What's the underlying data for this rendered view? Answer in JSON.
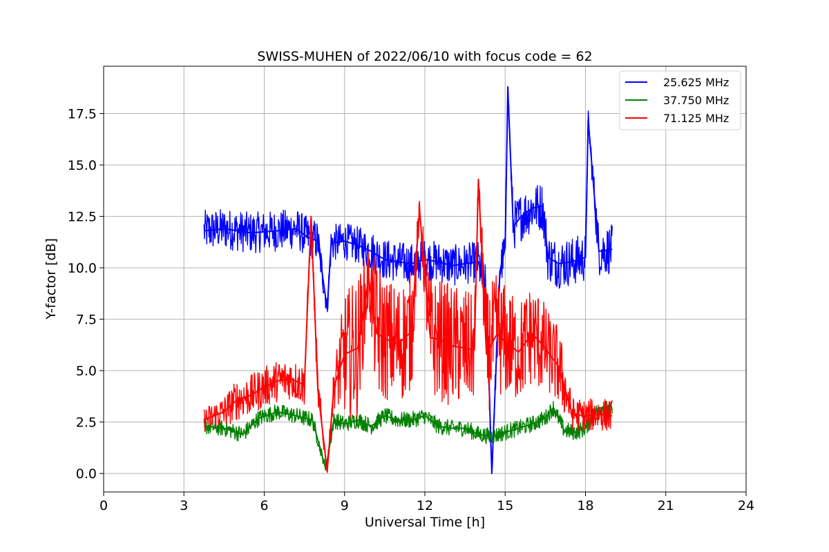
{
  "chart_data": {
    "type": "line",
    "title": "SWISS-MUHEN of 2022/06/10 with focus code = 62",
    "xlabel": "Universal Time [h]",
    "ylabel": "Y-factor [dB]",
    "xlim": [
      0,
      24
    ],
    "ylim": [
      -0.9,
      19.8
    ],
    "xticks": [
      0,
      3,
      6,
      9,
      12,
      15,
      18,
      21,
      24
    ],
    "xtick_labels": [
      "0",
      "3",
      "6",
      "9",
      "12",
      "15",
      "18",
      "21",
      "24"
    ],
    "yticks": [
      0.0,
      2.5,
      5.0,
      7.5,
      10.0,
      12.5,
      15.0,
      17.5
    ],
    "ytick_labels": [
      "0.0",
      "2.5",
      "5.0",
      "7.5",
      "10.0",
      "12.5",
      "15.0",
      "17.5"
    ],
    "grid": true,
    "legend_position": "top-right",
    "series": [
      {
        "name": "25.625 MHz",
        "color": "#0000ff",
        "x": [
          3.75,
          4.5,
          5.5,
          6.5,
          7.2,
          7.6,
          8.0,
          8.35,
          8.5,
          9.0,
          9.5,
          10.0,
          10.5,
          11.0,
          11.5,
          12.0,
          12.5,
          13.0,
          13.5,
          14.0,
          14.3,
          14.5,
          14.8,
          15.0,
          15.1,
          15.3,
          15.6,
          16.0,
          16.4,
          16.6,
          17.0,
          17.5,
          18.0,
          18.1,
          18.5,
          19.0
        ],
        "y": [
          11.8,
          11.9,
          11.7,
          11.8,
          11.9,
          11.5,
          11.3,
          8.0,
          11.2,
          11.3,
          11.1,
          10.8,
          10.4,
          10.3,
          10.2,
          10.4,
          10.3,
          10.1,
          10.2,
          10.3,
          8.5,
          0.0,
          9.8,
          11.0,
          18.8,
          12.0,
          12.5,
          12.9,
          13.0,
          10.5,
          10.2,
          10.3,
          10.5,
          17.2,
          10.8,
          10.9
        ],
        "band": [
          1.0,
          1.0,
          1.0,
          1.0,
          1.0,
          1.0,
          1.0,
          0.5,
          0.9,
          0.9,
          0.9,
          1.0,
          1.0,
          1.0,
          1.0,
          1.0,
          1.0,
          1.0,
          1.0,
          1.0,
          1.5,
          0.5,
          1.0,
          1.0,
          0.5,
          1.2,
          1.2,
          1.2,
          1.2,
          1.2,
          1.2,
          1.2,
          1.2,
          0.5,
          1.2,
          1.2
        ]
      },
      {
        "name": "37.750 MHz",
        "color": "#008000",
        "x": [
          3.75,
          4.5,
          5.2,
          5.8,
          6.5,
          7.2,
          7.8,
          8.3,
          8.6,
          9.0,
          9.5,
          10.0,
          10.5,
          11.0,
          11.5,
          12.0,
          12.5,
          13.0,
          13.5,
          14.0,
          14.5,
          15.0,
          15.5,
          16.0,
          16.5,
          16.8,
          17.2,
          17.6,
          18.0,
          18.5,
          19.0
        ],
        "y": [
          2.3,
          2.2,
          1.9,
          2.7,
          3.0,
          2.8,
          2.6,
          0.2,
          2.6,
          2.4,
          2.6,
          2.3,
          2.8,
          2.6,
          2.6,
          2.8,
          2.3,
          2.2,
          2.2,
          1.9,
          1.8,
          2.0,
          2.2,
          2.4,
          2.7,
          3.2,
          2.1,
          2.0,
          2.2,
          3.2,
          3.1
        ],
        "band": [
          0.4,
          0.4,
          0.4,
          0.4,
          0.4,
          0.4,
          0.4,
          0.2,
          0.4,
          0.4,
          0.4,
          0.4,
          0.4,
          0.4,
          0.4,
          0.4,
          0.4,
          0.4,
          0.4,
          0.4,
          0.4,
          0.4,
          0.4,
          0.4,
          0.4,
          0.4,
          0.4,
          0.4,
          0.4,
          0.4,
          0.4
        ]
      },
      {
        "name": "71.125 MHz",
        "color": "#ff0000",
        "x": [
          3.75,
          4.5,
          5.0,
          5.5,
          6.0,
          6.5,
          7.0,
          7.5,
          7.75,
          8.0,
          8.35,
          8.6,
          9.0,
          9.5,
          9.9,
          10.2,
          10.6,
          11.0,
          11.5,
          11.8,
          12.2,
          12.6,
          13.0,
          13.5,
          13.85,
          14.0,
          14.3,
          14.7,
          15.0,
          15.5,
          16.0,
          16.3,
          16.6,
          17.0,
          17.5,
          18.0,
          18.5,
          19.0
        ],
        "y": [
          2.6,
          3.0,
          3.6,
          3.8,
          4.2,
          4.5,
          4.6,
          4.3,
          12.5,
          4.1,
          0.1,
          4.2,
          5.8,
          6.1,
          9.5,
          6.8,
          6.5,
          6.3,
          6.9,
          12.8,
          6.6,
          6.5,
          6.2,
          6.1,
          6.0,
          14.3,
          5.8,
          6.8,
          6.4,
          5.9,
          6.8,
          6.4,
          5.9,
          5.2,
          2.9,
          2.8,
          2.9,
          2.8
        ],
        "band": [
          0.6,
          0.8,
          1.0,
          1.0,
          1.0,
          1.0,
          1.0,
          1.0,
          0.5,
          1.0,
          0.2,
          1.0,
          3.0,
          3.5,
          1.5,
          3.5,
          3.0,
          3.0,
          3.0,
          0.5,
          3.0,
          3.0,
          3.0,
          3.0,
          2.5,
          0.5,
          3.0,
          3.0,
          2.8,
          2.5,
          2.5,
          2.5,
          2.0,
          2.0,
          0.8,
          0.8,
          0.8,
          0.8
        ]
      }
    ]
  }
}
